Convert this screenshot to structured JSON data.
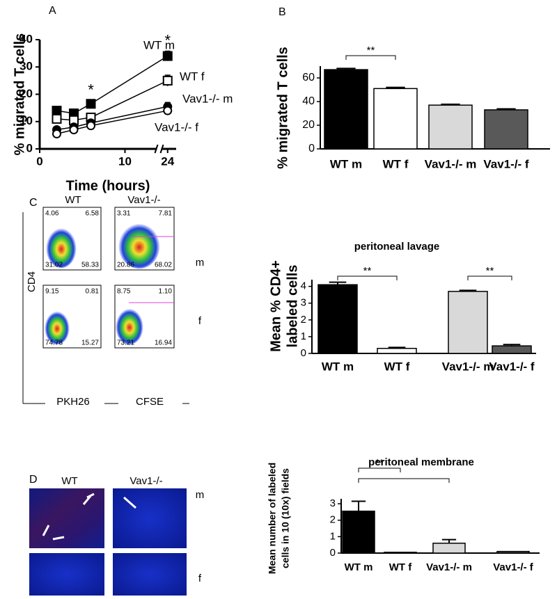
{
  "panel_labels": [
    "A",
    "B",
    "C",
    "D"
  ],
  "chart_data": [
    {
      "type": "line",
      "x_label": "Time (hours)",
      "y_label": "% migrated T cells",
      "x": [
        2,
        4,
        6,
        24
      ],
      "xlim": [
        0,
        25
      ],
      "xticks": [
        0,
        10,
        24
      ],
      "x_break": [
        14,
        23
      ],
      "ylim": [
        0,
        40
      ],
      "yticks": [
        0,
        10,
        20,
        30,
        40
      ],
      "series": [
        {
          "name": "WT m",
          "color": "#000000",
          "marker": "square",
          "filled": true,
          "values": [
            14,
            13,
            16.5,
            34
          ],
          "errors": [
            1.5,
            1.2,
            1.2,
            1.8
          ]
        },
        {
          "name": "WT f",
          "color": "#000000",
          "marker": "square",
          "filled": false,
          "values": [
            11,
            10.5,
            11.5,
            25
          ],
          "errors": [
            1,
            1,
            1,
            2
          ]
        },
        {
          "name": "Vav1-/- m",
          "color": "#000000",
          "marker": "circle",
          "filled": true,
          "values": [
            7,
            8,
            9.5,
            15.5
          ],
          "errors": [
            0.8,
            0.8,
            0.8,
            1.5
          ]
        },
        {
          "name": "Vav1-/- f",
          "color": "#000000",
          "marker": "circle",
          "filled": false,
          "values": [
            5.5,
            7,
            8.5,
            14
          ],
          "errors": [
            0.5,
            0.5,
            0.5,
            1
          ]
        }
      ],
      "annotations": [
        {
          "text": "*",
          "x": 6
        },
        {
          "text": "*",
          "x": 24
        }
      ]
    },
    {
      "type": "bar",
      "y_label": [
        "% migrated T cells"
      ],
      "categories": [
        "WT m",
        "WT f",
        "Vav1-/- m",
        "Vav1-/- f"
      ],
      "values": [
        67,
        51,
        37,
        33
      ],
      "errors": [
        1,
        1,
        0.7,
        0.8
      ],
      "colors": [
        "#000000",
        "#ffffff",
        "#d9d9d9",
        "#595959"
      ],
      "ylim": [
        0,
        70
      ],
      "yticks": [
        0,
        20,
        40,
        60
      ],
      "significance": [
        {
          "from": 0,
          "to": 1,
          "label": "**"
        }
      ]
    },
    {
      "type": "bar",
      "title": "peritoneal lavage",
      "y_label": [
        "Mean % CD4+",
        "labeled cells"
      ],
      "categories": [
        "WT m",
        "WT f",
        "Vav1-/- m",
        "Vav1-/- f"
      ],
      "values": [
        4.1,
        0.3,
        3.7,
        0.45
      ],
      "errors": [
        0.15,
        0.06,
        0.06,
        0.08
      ],
      "colors": [
        "#000000",
        "#ffffff",
        "#d9d9d9",
        "#595959"
      ],
      "ylim": [
        0,
        4.4
      ],
      "yticks": [
        0,
        1,
        2,
        3,
        4
      ],
      "significance": [
        {
          "from": 0,
          "to": 1,
          "label": "**"
        },
        {
          "from": 2,
          "to": 3,
          "label": "**"
        }
      ]
    },
    {
      "type": "bar",
      "title": "peritoneal membrane",
      "y_label": [
        "Mean number of labeled",
        "cells in 10 (10x) fields"
      ],
      "categories": [
        "WT m",
        "WT f",
        "Vav1-/- m",
        "Vav1-/- f"
      ],
      "values": [
        2.55,
        0.05,
        0.6,
        0.1
      ],
      "errors": [
        0.6,
        0,
        0.22,
        0
      ],
      "colors": [
        "#000000",
        "#ffffff",
        "#d9d9d9",
        "#595959"
      ],
      "ylim": [
        0,
        3.3
      ],
      "yticks": [
        0,
        1,
        2,
        3
      ],
      "significance": [
        {
          "from": 0,
          "to": 1,
          "label": "**"
        },
        {
          "from": 0,
          "to": 2
        }
      ]
    }
  ],
  "flow": {
    "columns": [
      "WT",
      "Vav1-/-"
    ],
    "rows": [
      "m",
      "f"
    ],
    "y_label": "CD4",
    "x_labels": [
      "PKH26",
      "CFSE"
    ],
    "quadrants": [
      [
        [
          "4.06",
          "6.58",
          "31.02",
          "58.33"
        ],
        [
          "3.31",
          "7.81",
          "20.86",
          "68.02"
        ]
      ],
      [
        [
          "9.15",
          "0.81",
          "74.78",
          "15.27"
        ],
        [
          "8.75",
          "1.10",
          "73.21",
          "16.94"
        ]
      ]
    ]
  },
  "microscopy": {
    "columns": [
      "WT",
      "Vav1-/-"
    ],
    "rows": [
      "m",
      "f"
    ]
  }
}
